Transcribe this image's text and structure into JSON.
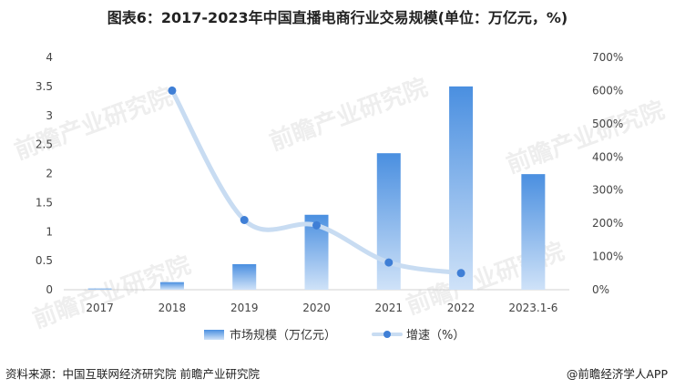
{
  "title": "图表6：2017-2023年中国直播电商行业交易规模(单位：万亿元，%)",
  "chart_data": {
    "type": "bar",
    "categories": [
      "2017",
      "2018",
      "2019",
      "2020",
      "2021",
      "2022",
      "2023.1-6"
    ],
    "series": [
      {
        "name": "市场规模（万亿元）",
        "type": "bar",
        "axis": "left",
        "values": [
          0.02,
          0.13,
          0.44,
          1.29,
          2.35,
          3.5,
          1.99
        ]
      },
      {
        "name": "增速（%）",
        "type": "line",
        "axis": "right",
        "values": [
          null,
          600,
          210,
          194,
          82,
          50,
          null
        ]
      }
    ],
    "y_left": {
      "ylim": [
        0,
        4
      ],
      "ticks": [
        "0",
        "0.5",
        "1",
        "1.5",
        "2",
        "2.5",
        "3",
        "3.5",
        "4"
      ]
    },
    "y_right": {
      "ylim": [
        0,
        700
      ],
      "ticks": [
        "0%",
        "100%",
        "200%",
        "300%",
        "400%",
        "500%",
        "600%",
        "700%"
      ]
    },
    "legend_position": "bottom",
    "grid": false
  },
  "footer": {
    "source": "资料来源：中国互联网经济研究院 前瞻产业研究院",
    "brand": "@前瞻经济学人APP"
  },
  "watermark": "前瞻产业研究院",
  "colors": {
    "bar_top": "#4a90e2",
    "bar_bottom": "#c6dcf6",
    "line": "#c8dcf2",
    "marker": "#3f7fd6"
  }
}
